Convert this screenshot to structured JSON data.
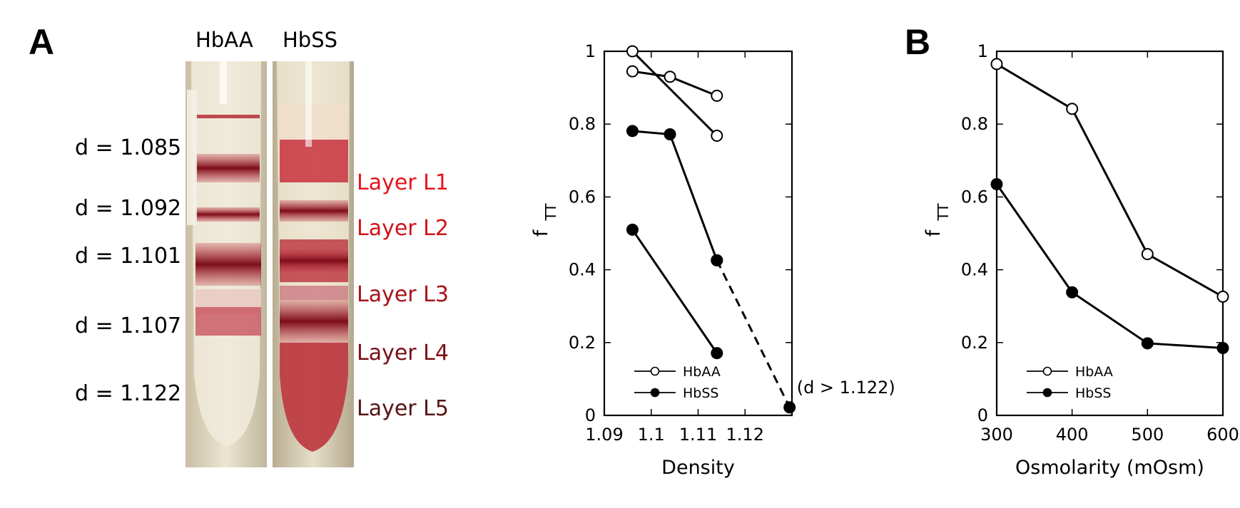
{
  "panels": {
    "a_label": "A",
    "b_label": "B"
  },
  "tubes": {
    "left_label": "HbAA",
    "right_label": "HbSS",
    "density_labels": [
      "d = 1.085",
      "d = 1.092",
      "d = 1.101",
      "d = 1.107",
      "d = 1.122"
    ],
    "layer_labels": [
      "Layer L1",
      "Layer L2",
      "Layer L3",
      "Layer L4",
      "Layer L5"
    ],
    "layer_colors": [
      "#e8141c",
      "#cf1419",
      "#a8121a",
      "#7a0f14",
      "#561414"
    ]
  },
  "chart_data": [
    {
      "type": "line",
      "xlabel": "Density",
      "ylabel": "f",
      "ylabel_sub": "TT",
      "xlim": [
        1.09,
        1.13
      ],
      "ylim": [
        0,
        1
      ],
      "x_ticks": [
        "1.09",
        "1.1",
        "1.11",
        "1.12"
      ],
      "y_ticks": [
        "0",
        "0.2",
        "0.4",
        "0.6",
        "0.8",
        "1"
      ],
      "legend_position": "bottom-left",
      "legend": [
        {
          "name": "HbAA",
          "marker": "open"
        },
        {
          "name": "HbSS",
          "marker": "filled"
        }
      ],
      "series": [
        {
          "name": "HbAA",
          "marker": "open",
          "x": [
            1.096,
            1.104,
            1.114
          ],
          "y": [
            0.945,
            0.93,
            0.878
          ]
        },
        {
          "name": "HbAA",
          "marker": "open",
          "x": [
            1.096,
            1.114
          ],
          "y": [
            1.0,
            0.768
          ]
        },
        {
          "name": "HbSS",
          "marker": "filled",
          "x": [
            1.096,
            1.104,
            1.114
          ],
          "y": [
            0.781,
            0.772,
            0.426
          ]
        },
        {
          "name": "HbSS",
          "marker": "filled",
          "x": [
            1.096,
            1.114
          ],
          "y": [
            0.51,
            0.171
          ]
        },
        {
          "name": "HbSS",
          "marker": "filled",
          "dashed": true,
          "x": [
            1.114,
            1.1295
          ],
          "y": [
            0.426,
            0.022
          ]
        }
      ],
      "annotation": "(d > 1.122)"
    },
    {
      "type": "line",
      "xlabel": "Osmolarity (mOsm)",
      "ylabel": "f",
      "ylabel_sub": "TT",
      "xlim": [
        300,
        600
      ],
      "ylim": [
        0,
        1
      ],
      "x_ticks": [
        "300",
        "400",
        "500",
        "600"
      ],
      "y_ticks": [
        "0",
        "0.2",
        "0.4",
        "0.6",
        "0.8",
        "1"
      ],
      "legend_position": "bottom-left",
      "legend": [
        {
          "name": "HbAA",
          "marker": "open"
        },
        {
          "name": "HbSS",
          "marker": "filled"
        }
      ],
      "series": [
        {
          "name": "HbAA",
          "marker": "open",
          "x": [
            300,
            400,
            500,
            600
          ],
          "y": [
            0.965,
            0.842,
            0.443,
            0.326
          ]
        },
        {
          "name": "HbSS",
          "marker": "filled",
          "x": [
            300,
            400,
            500,
            600
          ],
          "y": [
            0.635,
            0.338,
            0.198,
            0.185
          ]
        }
      ]
    }
  ]
}
